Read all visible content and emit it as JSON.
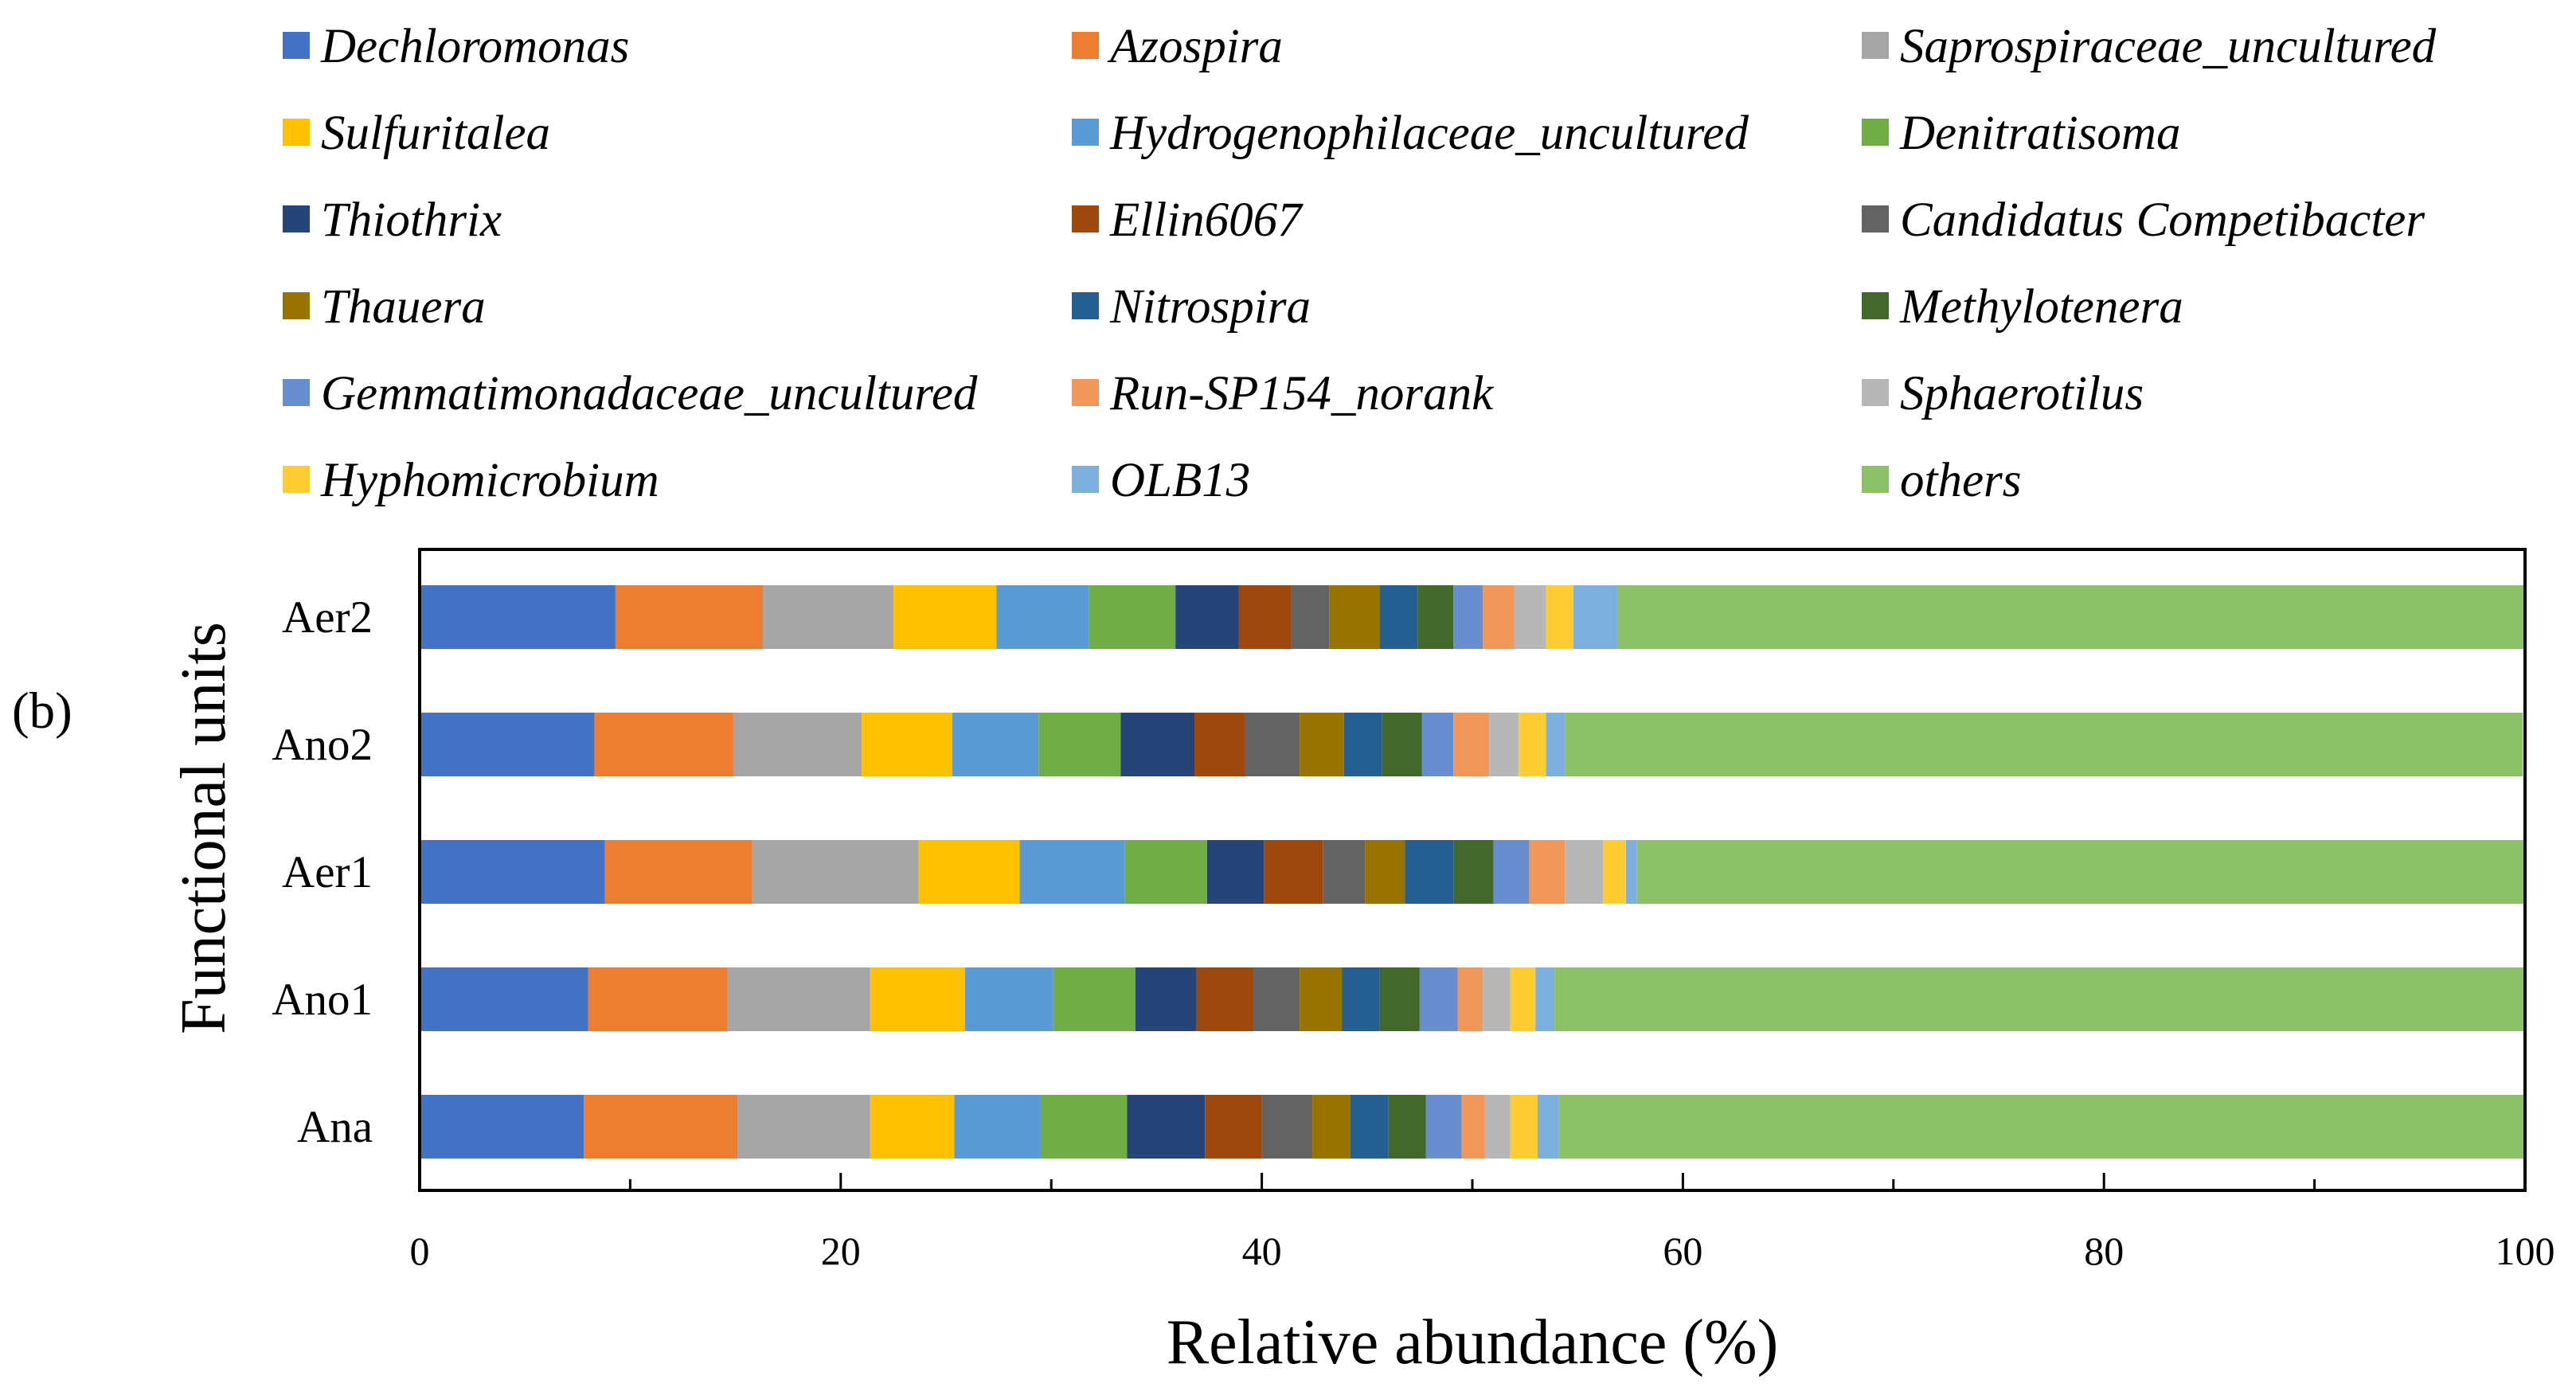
{
  "chart_data": {
    "type": "bar",
    "orientation": "horizontal",
    "stacked": true,
    "panel_label": "(b)",
    "xlabel": "Relative abundance (%)",
    "ylabel": "Functional units",
    "xlim": [
      0,
      100
    ],
    "xticks": [
      "0",
      "20",
      "40",
      "60",
      "80",
      "100"
    ],
    "grid": false,
    "legend_position": "top",
    "categories": [
      "Ana",
      "Ano1",
      "Aer1",
      "Ano2",
      "Aer2"
    ],
    "series": [
      {
        "name": "Dechloromonas",
        "color": "#4472C4",
        "values": [
          7.8,
          8.0,
          8.8,
          8.3,
          9.3
        ]
      },
      {
        "name": "Azospira",
        "color": "#ED7D31",
        "values": [
          7.3,
          6.6,
          7.0,
          6.6,
          7.0
        ]
      },
      {
        "name": "Saprospiraceae_uncultured",
        "color": "#A5A5A5",
        "values": [
          6.3,
          6.8,
          7.9,
          6.1,
          6.2
        ]
      },
      {
        "name": "Sulfuritalea",
        "color": "#FFC000",
        "values": [
          4.0,
          4.5,
          4.8,
          4.3,
          4.9
        ]
      },
      {
        "name": "Hydrogenophilaceae_uncultured",
        "color": "#5B9BD5",
        "values": [
          4.1,
          4.2,
          5.0,
          4.1,
          4.4
        ]
      },
      {
        "name": "Denitratisoma",
        "color": "#70AD47",
        "values": [
          4.1,
          3.9,
          3.9,
          3.9,
          4.1
        ]
      },
      {
        "name": "Thiothrix",
        "color": "#264478",
        "values": [
          3.7,
          2.9,
          2.7,
          3.5,
          3.0
        ]
      },
      {
        "name": "Ellin6067",
        "color": "#9E480E",
        "values": [
          2.7,
          2.7,
          2.8,
          2.4,
          2.5
        ]
      },
      {
        "name": "Candidatus Competibacter",
        "color": "#636363",
        "values": [
          2.4,
          2.2,
          2.0,
          2.6,
          1.8
        ]
      },
      {
        "name": "Thauera",
        "color": "#997300",
        "values": [
          1.8,
          2.0,
          1.9,
          2.1,
          2.4
        ]
      },
      {
        "name": "Nitrospira",
        "color": "#255E91",
        "values": [
          1.8,
          1.8,
          2.3,
          1.8,
          1.8
        ]
      },
      {
        "name": "Methylotenera",
        "color": "#43682B",
        "values": [
          1.8,
          1.9,
          1.9,
          1.9,
          1.7
        ]
      },
      {
        "name": "Gemmatimonadaceae_uncultured",
        "color": "#698ED0",
        "values": [
          1.7,
          1.8,
          1.7,
          1.5,
          1.4
        ]
      },
      {
        "name": "Run-SP154_norank",
        "color": "#F1975A",
        "values": [
          1.1,
          1.2,
          1.7,
          1.7,
          1.5
        ]
      },
      {
        "name": "Sphaerotilus",
        "color": "#B7B7B7",
        "values": [
          1.2,
          1.3,
          1.8,
          1.4,
          1.5
        ]
      },
      {
        "name": "Hyphomicrobium",
        "color": "#FFCD33",
        "values": [
          1.3,
          1.2,
          1.1,
          1.3,
          1.3
        ]
      },
      {
        "name": "OLB13",
        "color": "#7CAFDD",
        "values": [
          1.0,
          0.9,
          0.5,
          0.9,
          2.1
        ]
      },
      {
        "name": "others",
        "color": "#8CC168",
        "values": [
          46.0,
          46.2,
          42.4,
          45.5,
          43.1
        ]
      }
    ]
  }
}
